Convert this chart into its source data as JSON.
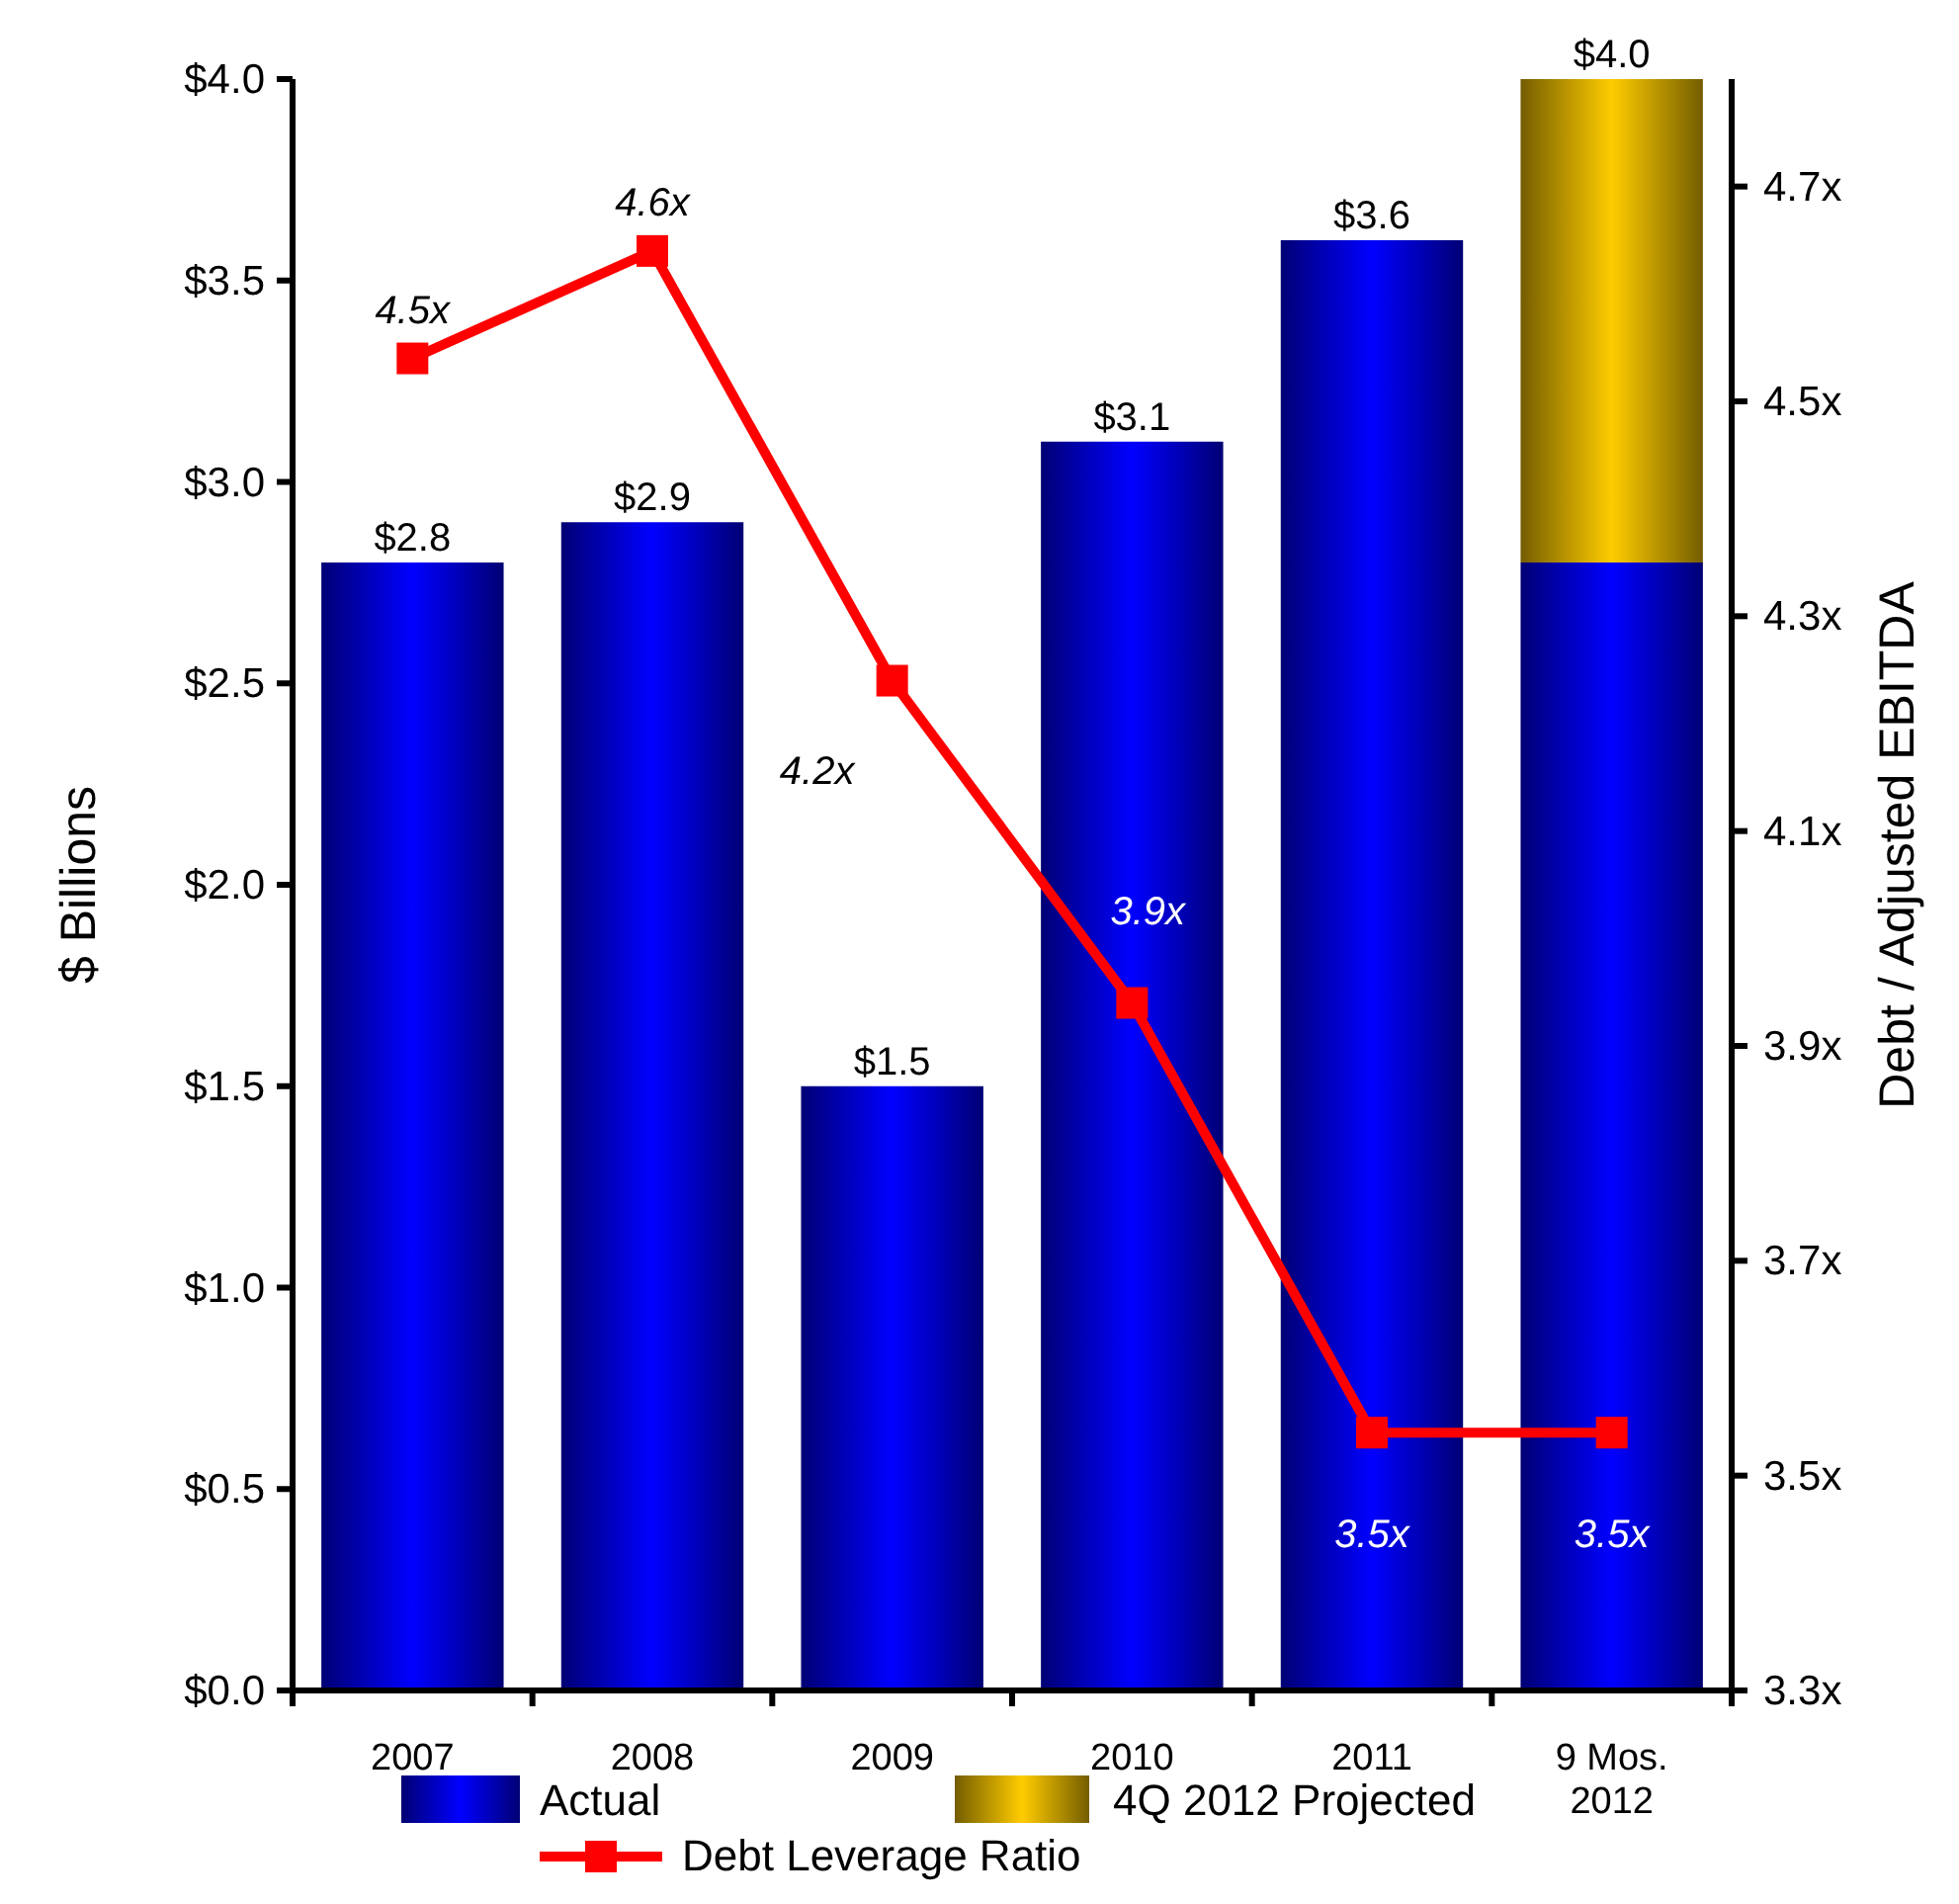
{
  "chart_data": {
    "type": "bar",
    "stacked": true,
    "ylabel": "$ Billions",
    "y2label": "Debt / Adjusted EBITDA",
    "categories": [
      "2007",
      "2008",
      "2009",
      "2010",
      "2011",
      "9 Mos. 2012"
    ],
    "series": [
      {
        "name": "Actual",
        "color": "#0000ff",
        "values": [
          2.8,
          2.9,
          1.5,
          3.1,
          3.6,
          2.8
        ]
      },
      {
        "name": "4Q 2012 Projected",
        "color": "#ffcc00",
        "values": [
          null,
          null,
          null,
          null,
          null,
          1.2
        ]
      },
      {
        "name": "Debt Leverage Ratio",
        "type": "line",
        "axis": "y2",
        "color": "#ff0000",
        "marker": "square",
        "values": [
          4.54,
          4.64,
          4.24,
          3.94,
          3.54,
          3.54
        ],
        "value_labels": [
          "4.5x",
          "4.6x",
          "4.2x",
          "3.9x",
          "3.5x",
          "3.5x"
        ]
      }
    ],
    "totals": [
      "$2.8",
      "$2.9",
      "$1.5",
      "$3.1",
      "$3.6",
      "$4.0"
    ],
    "ylim": [
      0,
      4
    ],
    "yticks": [
      {
        "value": 0,
        "label": "$0.0"
      },
      {
        "value": 0.5,
        "label": "$0.5"
      },
      {
        "value": 1,
        "label": "$1.0"
      },
      {
        "value": 1.5,
        "label": "$1.5"
      },
      {
        "value": 2,
        "label": "$2.0"
      },
      {
        "value": 2.5,
        "label": "$2.5"
      },
      {
        "value": 3,
        "label": "$3.0"
      },
      {
        "value": 3.5,
        "label": "$3.5"
      },
      {
        "value": 4,
        "label": "$4.0"
      }
    ],
    "y2lim": [
      3.3,
      4.8
    ],
    "y2ticks": [
      {
        "value": 3.3,
        "label": "3.3x"
      },
      {
        "value": 3.5,
        "label": "3.5x"
      },
      {
        "value": 3.7,
        "label": "3.7x"
      },
      {
        "value": 3.9,
        "label": "3.9x"
      },
      {
        "value": 4.1,
        "label": "4.1x"
      },
      {
        "value": 4.3,
        "label": "4.3x"
      },
      {
        "value": 4.5,
        "label": "4.5x"
      },
      {
        "value": 4.7,
        "label": "4.7x"
      }
    ],
    "grid": false,
    "legend": "bottom"
  }
}
